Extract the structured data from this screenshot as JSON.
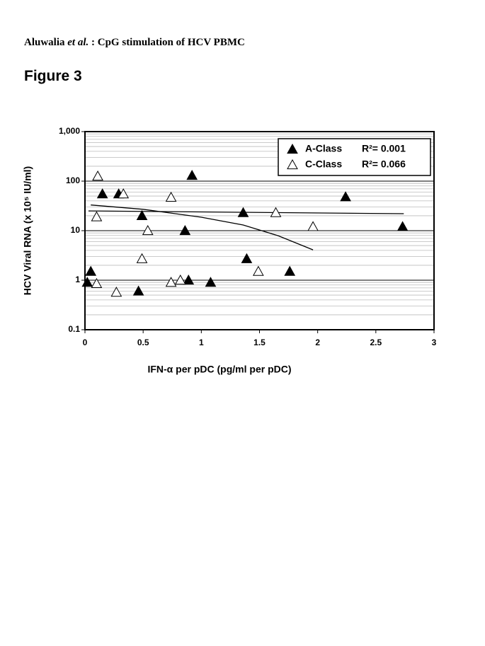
{
  "header": {
    "author": "Aluwalia ",
    "etal": "et al.",
    "rest": " : CpG stimulation of HCV PBMC"
  },
  "figure_label": "Figure 3",
  "chart_data": {
    "type": "scatter",
    "xlabel": "IFN-α per pDC (pg/ml per pDC)",
    "ylabel": "HCV Viral RNA (x 10⁵ IU/ml)",
    "xlim": [
      0,
      3
    ],
    "xticks": [
      0,
      0.5,
      1,
      1.5,
      2,
      2.5,
      3
    ],
    "ylim": [
      0.1,
      1000
    ],
    "yscale": "log",
    "yticks": [
      0.1,
      1,
      10,
      100,
      {
        "value": 1000,
        "label": "1,000"
      }
    ],
    "grid": true,
    "minor_grid": true,
    "legend": "upper right",
    "series": [
      {
        "name": "A-Class",
        "color": "#000000",
        "filled": true,
        "r2_label": "R²= 0.001",
        "x": [
          0.02,
          0.05,
          0.15,
          0.29,
          0.49,
          0.46,
          0.86,
          0.89,
          0.92,
          1.08,
          1.36,
          1.39,
          1.76,
          2.24,
          2.73
        ],
        "values": [
          0.9,
          1.5,
          55,
          55,
          20,
          0.6,
          10,
          1.0,
          130,
          0.9,
          23,
          2.7,
          1.5,
          48,
          12
        ],
        "fit": {
          "x": [
            0.03,
            2.74
          ],
          "values": [
            25,
            22
          ]
        }
      },
      {
        "name": "C-Class",
        "color": "#000000",
        "filled": false,
        "r2_label": "R²= 0.066",
        "x": [
          0.11,
          0.33,
          0.1,
          0.1,
          0.27,
          0.49,
          0.54,
          0.74,
          0.74,
          0.82,
          1.49,
          1.64,
          1.96
        ],
        "values": [
          126,
          55,
          19,
          0.85,
          0.57,
          2.7,
          10,
          47,
          0.9,
          1.0,
          1.5,
          23,
          12
        ],
        "fit": {
          "x": [
            0.05,
            0.5,
            1.0,
            1.36,
            1.66,
            1.96
          ],
          "values": [
            33,
            27,
            18.7,
            13,
            7.9,
            4.1
          ]
        }
      }
    ]
  }
}
